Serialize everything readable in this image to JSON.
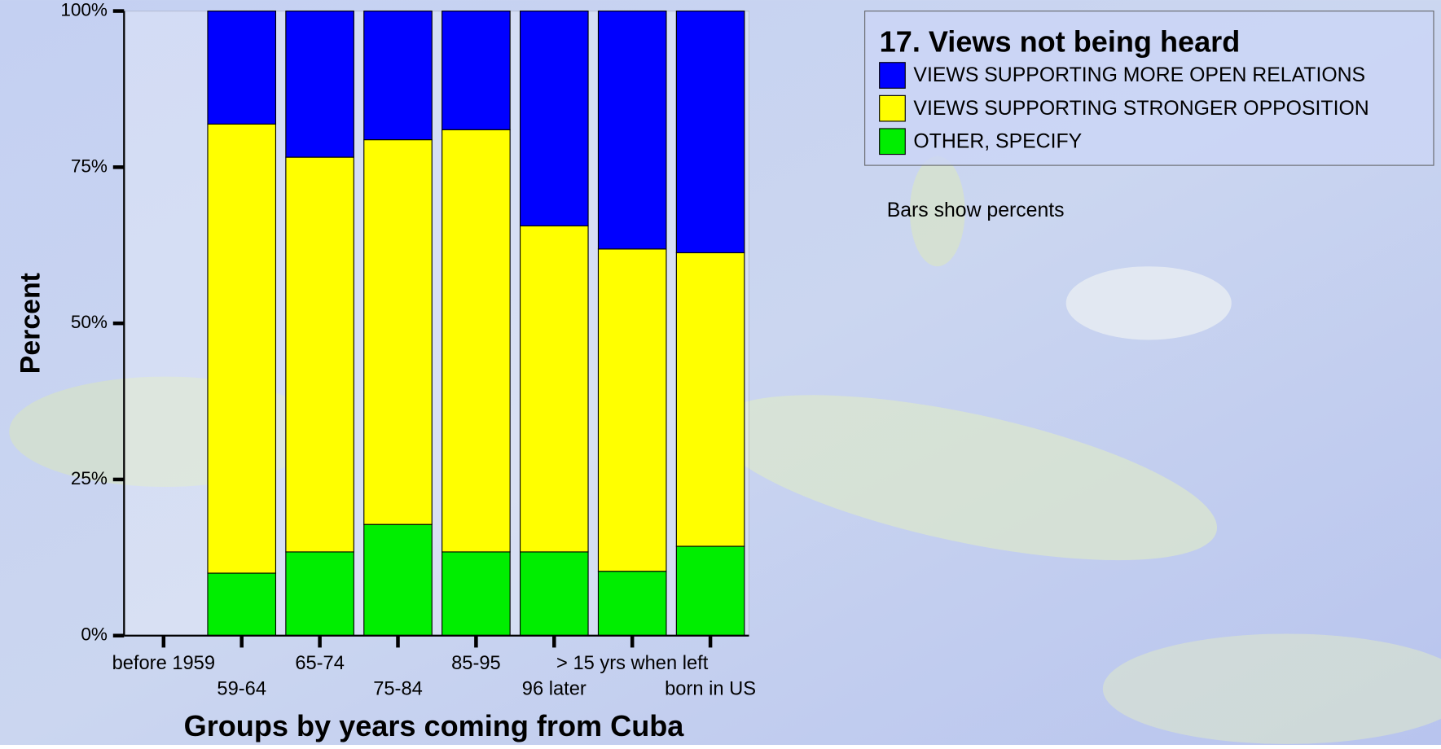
{
  "chart_data": {
    "type": "stacked_bar",
    "title": "17. Views not being heard",
    "note": "Bars show percents",
    "x_label": "Groups by years coming from Cuba",
    "y_label": "Percent",
    "categories": [
      "before 1959",
      "59-64",
      "65-74",
      "75-84",
      "85-95",
      "96 later",
      "> 15 yrs when left",
      "born in US"
    ],
    "series": [
      {
        "name": "VIEWS SUPPORTING MORE OPEN RELATIONS",
        "color": "#0000ff",
        "values": [
          null,
          18.1,
          23.4,
          20.6,
          19.0,
          34.4,
          38.1,
          38.7
        ]
      },
      {
        "name": "VIEWS SUPPORTING STRONGER OPPOSITION",
        "color": "#ffff00",
        "values": [
          null,
          71.9,
          63.2,
          61.6,
          67.6,
          52.2,
          51.6,
          47.0
        ]
      },
      {
        "name": "OTHER, SPECIFY",
        "color": "#00ee00",
        "values": [
          null,
          10.0,
          13.4,
          17.8,
          13.4,
          13.4,
          10.3,
          14.3
        ]
      }
    ],
    "ylim": [
      0,
      100
    ],
    "yticks": [
      {
        "value": 0,
        "label": "0%"
      },
      {
        "value": 25,
        "label": "25%"
      },
      {
        "value": 50,
        "label": "50%"
      },
      {
        "value": 75,
        "label": "75%"
      },
      {
        "value": 100,
        "label": "100%"
      }
    ],
    "legend": "top-right"
  }
}
